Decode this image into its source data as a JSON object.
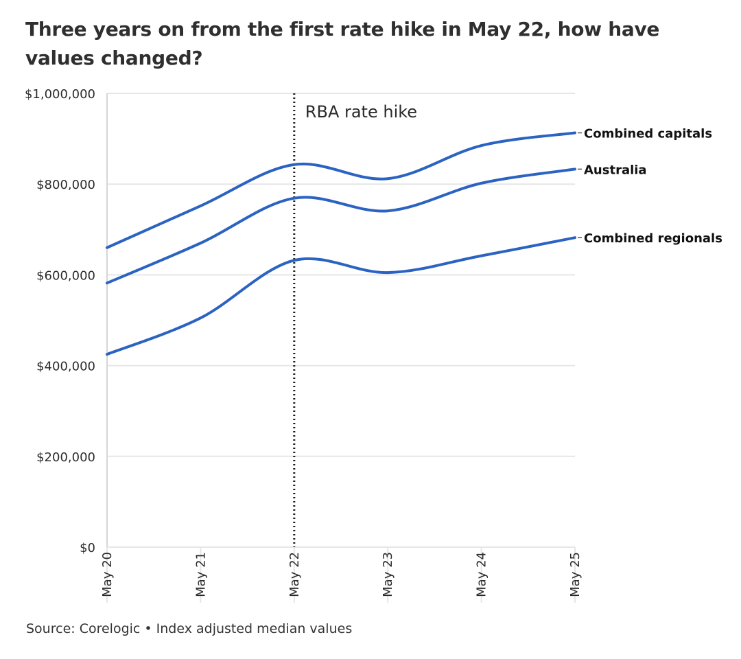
{
  "title": "Three years on from the first rate hike in May 22, how have values changed?",
  "source": "Source: Corelogic • Index adjusted median values",
  "colors": {
    "line": "#2b63c2",
    "grid": "#e6e6e6",
    "text": "#2b2b2b",
    "annotation": "#1a1a1a"
  },
  "chart_data": {
    "type": "line",
    "title": "Three years on from the first rate hike in May 22, how have values changed?",
    "xlabel": "",
    "ylabel": "",
    "x": [
      "May 20",
      "May 21",
      "May 22",
      "May 23",
      "May 24",
      "May 25"
    ],
    "ylim": [
      0,
      1000000
    ],
    "yticks": [
      0,
      200000,
      400000,
      600000,
      800000,
      1000000
    ],
    "ytick_labels": [
      "$0",
      "$200,000",
      "$400,000",
      "$600,000",
      "$800,000",
      "$1,000,000"
    ],
    "grid": true,
    "legend": "direct labels at line ends",
    "annotations": [
      {
        "x": "May 22",
        "label": "RBA rate hike",
        "style": "dotted vertical line"
      }
    ],
    "series": [
      {
        "name": "Combined capitals",
        "values": [
          660000,
          752000,
          843000,
          812000,
          885000,
          913000
        ]
      },
      {
        "name": "Australia",
        "values": [
          582000,
          670000,
          769000,
          741000,
          802000,
          833000
        ]
      },
      {
        "name": "Combined regionals",
        "values": [
          425000,
          505000,
          632000,
          605000,
          642000,
          682000
        ]
      }
    ]
  }
}
